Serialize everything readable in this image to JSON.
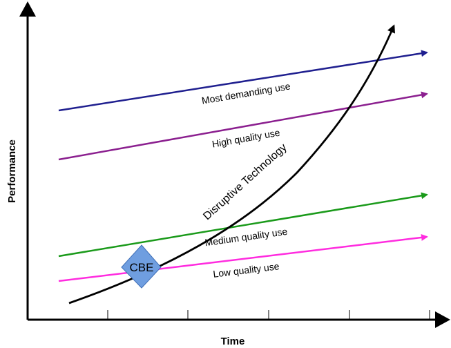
{
  "axes": {
    "x_label": "Time",
    "y_label": "Performance"
  },
  "lines": [
    {
      "label": "Most demanding use",
      "color": "#1f1f8f"
    },
    {
      "label": "High quality use",
      "color": "#8b1f8f"
    },
    {
      "label": "Medium quality use",
      "color": "#1a9a1a"
    },
    {
      "label": "Low quality use",
      "color": "#ff2bdf"
    }
  ],
  "curve": {
    "label": "Disruptive Technology",
    "color": "#000000"
  },
  "badge": {
    "label": "CBE",
    "fill": "#6f9ee0"
  }
}
